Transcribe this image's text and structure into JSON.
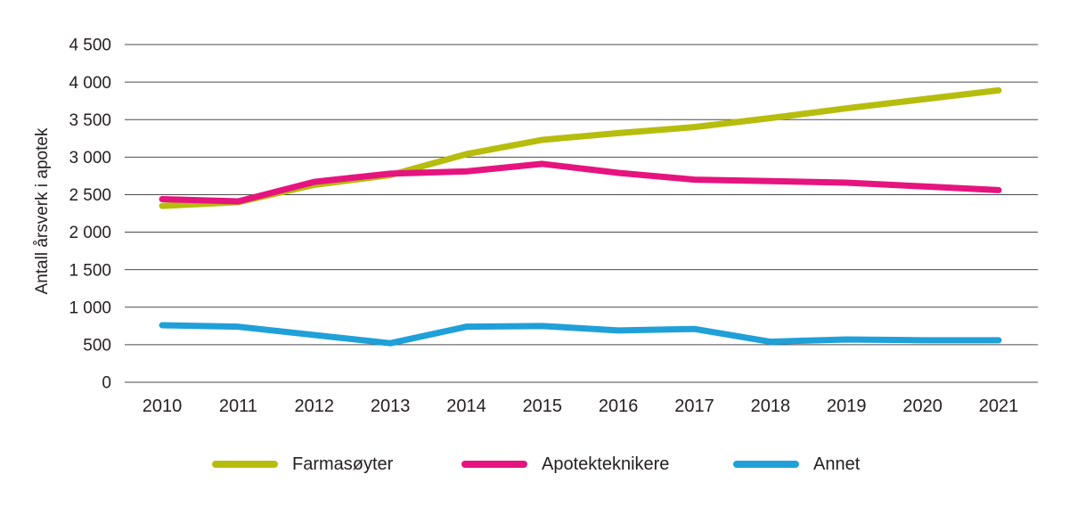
{
  "page": {
    "background": "#ffffff",
    "text_color": "#231f20",
    "gridline_color": "#4b4b4b"
  },
  "chart_data": {
    "type": "line",
    "title": "",
    "xlabel": "",
    "ylabel": "Antall årsverk i apotek",
    "categories": [
      "2010",
      "2011",
      "2012",
      "2013",
      "2014",
      "2015",
      "2016",
      "2017",
      "2018",
      "2019",
      "2020",
      "2021"
    ],
    "series": [
      {
        "name": "Farmasøyter",
        "color": "#b6bd0d",
        "values": [
          2350,
          2400,
          2630,
          2760,
          3040,
          3230,
          3320,
          3400,
          3520,
          3650,
          3770,
          3890
        ]
      },
      {
        "name": "Apotekteknikere",
        "color": "#e6147e",
        "values": [
          2440,
          2410,
          2670,
          2780,
          2810,
          2910,
          2790,
          2700,
          2680,
          2660,
          2610,
          2560
        ]
      },
      {
        "name": "Annet",
        "color": "#1fa0d9",
        "values": [
          760,
          740,
          630,
          520,
          740,
          750,
          690,
          710,
          540,
          570,
          560,
          560
        ]
      }
    ],
    "ylim": [
      0,
      4500
    ],
    "ytick_step": 500,
    "ytick_labels_top_down": [
      "4 500",
      "4 000",
      "3 500",
      "3 000",
      "2 500",
      "2 000",
      "1 500",
      "1 000",
      "500",
      "0"
    ],
    "grid": true,
    "legend_position": "bottom"
  }
}
